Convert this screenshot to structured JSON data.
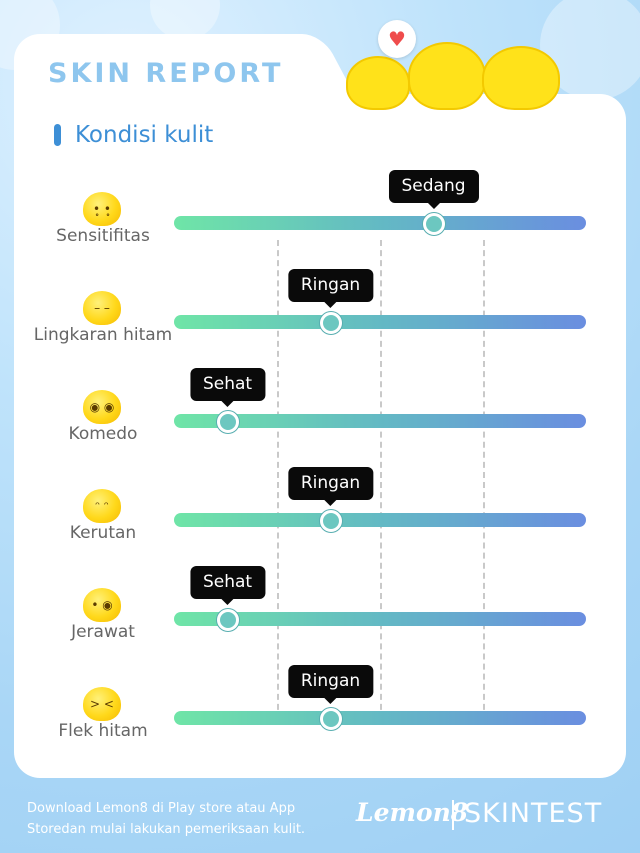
{
  "header": {
    "title": "SKIN REPORT",
    "section_title": "Kondisi kulit"
  },
  "conditions": [
    {
      "label": "Sensitifitas",
      "level": "Sedang",
      "value_fraction": 0.625,
      "emoji": "worried-face-icon"
    },
    {
      "label": "Lingkaran hitam",
      "level": "Ringan",
      "value_fraction": 0.375,
      "emoji": "tired-face-icon"
    },
    {
      "label": "Komedo",
      "level": "Sehat",
      "value_fraction": 0.125,
      "emoji": "shocked-face-icon"
    },
    {
      "label": "Kerutan",
      "level": "Ringan",
      "value_fraction": 0.375,
      "emoji": "frowning-face-icon"
    },
    {
      "label": "Jerawat",
      "level": "Sehat",
      "value_fraction": 0.125,
      "emoji": "surprised-face-icon"
    },
    {
      "label": "Flek hitam",
      "level": "Ringan",
      "value_fraction": 0.375,
      "emoji": "anguished-face-icon"
    }
  ],
  "footer": {
    "text": "Download Lemon8 di Play store atau App Storedan mulai lakukan pemeriksaan kulit.",
    "brand_lemon8": "Lemon8",
    "brand_skintest": "SKINTEST"
  },
  "colors": {
    "accent": "#3d8fd6",
    "title": "#8ec6ee",
    "track_start": "#6fe5a7",
    "track_end": "#6a8ee0",
    "tooltip": "#0a0a0a"
  }
}
